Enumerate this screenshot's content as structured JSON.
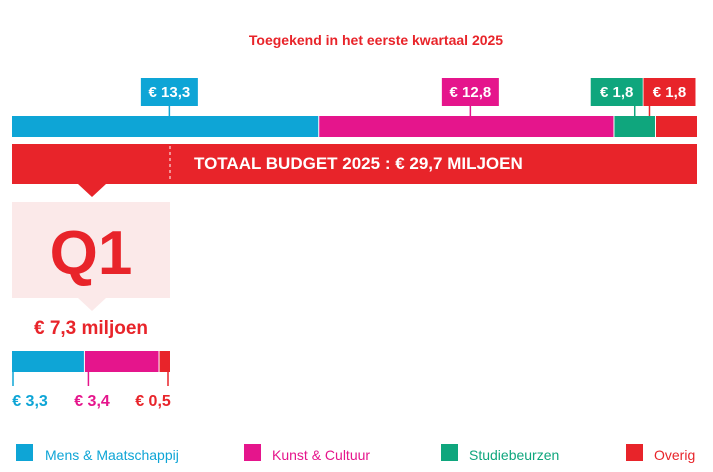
{
  "chart_data": {
    "type": "bar",
    "title": "Toegekend in het eerste kwartaal 2025",
    "colors": {
      "Mens & Maatschappij": "#0ea5d6",
      "Kunst & Cultuur": "#e5158c",
      "Studiebeurzen": "#0fa67d",
      "Overig": "#e8242a",
      "q1_box": "#fbe9e9"
    },
    "categories": [
      "Mens & Maatschappij",
      "Kunst & Cultuur",
      "Studiebeurzen",
      "Overig"
    ],
    "budget_2025": {
      "values": [
        13.3,
        12.8,
        1.8,
        1.8
      ],
      "labels": [
        "€ 13,3",
        "€ 12,8",
        "€ 1,8",
        "€ 1,8"
      ]
    },
    "total_label": "TOTAAL BUDGET 2025 : € 29,7 MILJOEN",
    "q1": {
      "label": "Q1",
      "amount_label": "€ 7,3 miljoen",
      "values": [
        3.3,
        3.4,
        0.5
      ],
      "labels": [
        "€ 3,3",
        "€ 3,4",
        "€ 0,5"
      ]
    },
    "legend": [
      "Mens & Maatschappij",
      "Kunst & Cultuur",
      "Studiebeurzen",
      "Overig"
    ]
  }
}
